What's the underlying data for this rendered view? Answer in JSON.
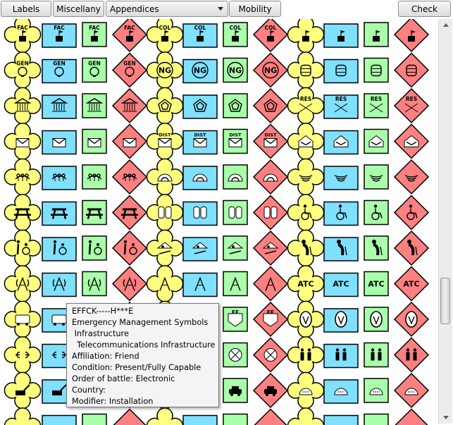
{
  "toolbar": {
    "labels_button": "Labels",
    "miscellany_button": "Miscellany",
    "category_select": "Appendices",
    "mobility_button": "Mobility",
    "check_button": "Check"
  },
  "colors": {
    "friend_yellow": "#ffff80",
    "friend_cyan": "#80e0ff",
    "neutral_green": "#aaffaa",
    "hostile_red": "#ff8080"
  },
  "grid": {
    "affiliations": [
      "friend",
      "unknown-cyan",
      "neutral",
      "hostile",
      "friend",
      "unknown-cyan",
      "neutral",
      "hostile",
      "friend",
      "unknown-cyan",
      "neutral",
      "hostile"
    ],
    "rows": [
      {
        "icons": [
          "FAC flag",
          "FAC flag",
          "FAC flag",
          "FAC flag",
          "COL flag",
          "COL flag",
          "COL flag",
          "COL flag",
          "flag",
          "flag",
          "flag",
          "flag"
        ],
        "texts": [
          "FAC",
          "FAC",
          "FAC",
          "FAC",
          "COL",
          "COL",
          "COL",
          "COL",
          "",
          "",
          "",
          ""
        ]
      },
      {
        "icons": [
          "GEN bulb",
          "GEN bulb",
          "GEN bulb",
          "GEN bulb",
          "NG",
          "NG",
          "NG",
          "NG",
          "tank",
          "tank",
          "tank",
          "tank"
        ],
        "texts": [
          "GEN",
          "GEN",
          "GEN",
          "GEN",
          "NG",
          "NG",
          "NG",
          "NG",
          "",
          "",
          "",
          ""
        ]
      },
      {
        "icons": [
          "government",
          "government",
          "government",
          "government",
          "pentagon",
          "pentagon",
          "pentagon",
          "pentagon",
          "RES",
          "RES",
          "RES",
          "RES"
        ],
        "texts": [
          "",
          "",
          "",
          "",
          "",
          "",
          "",
          "",
          "RES",
          "RES",
          "RES",
          "RES"
        ]
      },
      {
        "icons": [
          "envelope",
          "envelope",
          "envelope",
          "envelope",
          "DIST envelope",
          "DIST envelope",
          "DIST envelope",
          "DIST envelope",
          "house mail",
          "house mail",
          "house mail",
          "house mail"
        ],
        "texts": [
          "",
          "",
          "",
          "",
          "DIST",
          "DIST",
          "DIST",
          "DIST",
          "",
          "",
          "",
          ""
        ]
      },
      {
        "icons": [
          "recreation",
          "recreation",
          "recreation",
          "recreation",
          "tunnel",
          "tunnel",
          "tunnel",
          "tunnel",
          "ripple",
          "ripple",
          "ripple",
          "ripple"
        ],
        "texts": [
          "",
          "",
          "",
          "",
          "",
          "",
          "",
          "",
          "",
          "",
          "",
          ""
        ]
      },
      {
        "icons": [
          "picnic table",
          "picnic table",
          "picnic table",
          "picnic table",
          "doors",
          "doors",
          "doors",
          "doors",
          "wheelchair",
          "wheelchair",
          "wheelchair",
          "wheelchair"
        ],
        "texts": [
          "",
          "",
          "",
          "",
          "",
          "",
          "",
          "",
          "",
          "",
          "",
          ""
        ]
      },
      {
        "icons": [
          "disabled care",
          "disabled care",
          "disabled care",
          "disabled care",
          "playground",
          "playground",
          "playground",
          "playground",
          "elderly",
          "elderly",
          "elderly",
          "elderly"
        ],
        "texts": [
          "",
          "",
          "",
          "",
          "",
          "",
          "",
          "",
          "",
          "",
          "",
          ""
        ]
      },
      {
        "icons": [
          "telecom tower",
          "telecom tower",
          "telecom tower",
          "telecom tower",
          "tower",
          "tower",
          "tower",
          "tower",
          "ATC",
          "ATC",
          "ATC",
          "ATC"
        ],
        "texts": [
          "",
          "",
          "",
          "",
          "",
          "",
          "",
          "",
          "ATC",
          "ATC",
          "ATC",
          "ATC"
        ]
      },
      {
        "icons": [
          "bus",
          "bus",
          "bus",
          "bus",
          "",
          "",
          "FE",
          "FE",
          "emblem",
          "emblem",
          "emblem",
          "emblem"
        ],
        "texts": [
          "",
          "",
          "",
          "",
          "",
          "",
          "FE",
          "FE",
          "",
          "",
          "",
          ""
        ]
      },
      {
        "icons": [
          "connector",
          "connector",
          "connector",
          "connector",
          "",
          "",
          "junction",
          "junction",
          "restroom",
          "restroom",
          "restroom",
          "restroom"
        ],
        "texts": [
          "",
          "",
          "",
          "",
          "",
          "",
          "",
          "",
          "",
          "",
          "",
          ""
        ]
      },
      {
        "icons": [
          "construction",
          "construction",
          "construction",
          "construction",
          "",
          "",
          "car",
          "car",
          "oven",
          "oven",
          "oven",
          "oven"
        ],
        "texts": [
          "",
          "",
          "",
          "",
          "",
          "",
          "",
          "",
          "",
          "",
          "",
          ""
        ]
      },
      {
        "icons": [
          "",
          "",
          "",
          "",
          "",
          "",
          "",
          "",
          "",
          "",
          "",
          ""
        ],
        "texts": [
          "",
          "",
          "",
          "",
          "",
          "",
          "",
          "",
          "",
          "",
          "",
          ""
        ]
      }
    ]
  },
  "tooltip": {
    "lines": [
      "EFFCK-----H***E",
      "Emergency Management Symbols",
      " Infrastructure",
      "  Telecommunications Infrastructure",
      "Affiliation: Friend",
      "Condition: Present/Fully Capable",
      "Order of battle: Electronic",
      "Country:",
      "Modifier: Installation"
    ]
  }
}
